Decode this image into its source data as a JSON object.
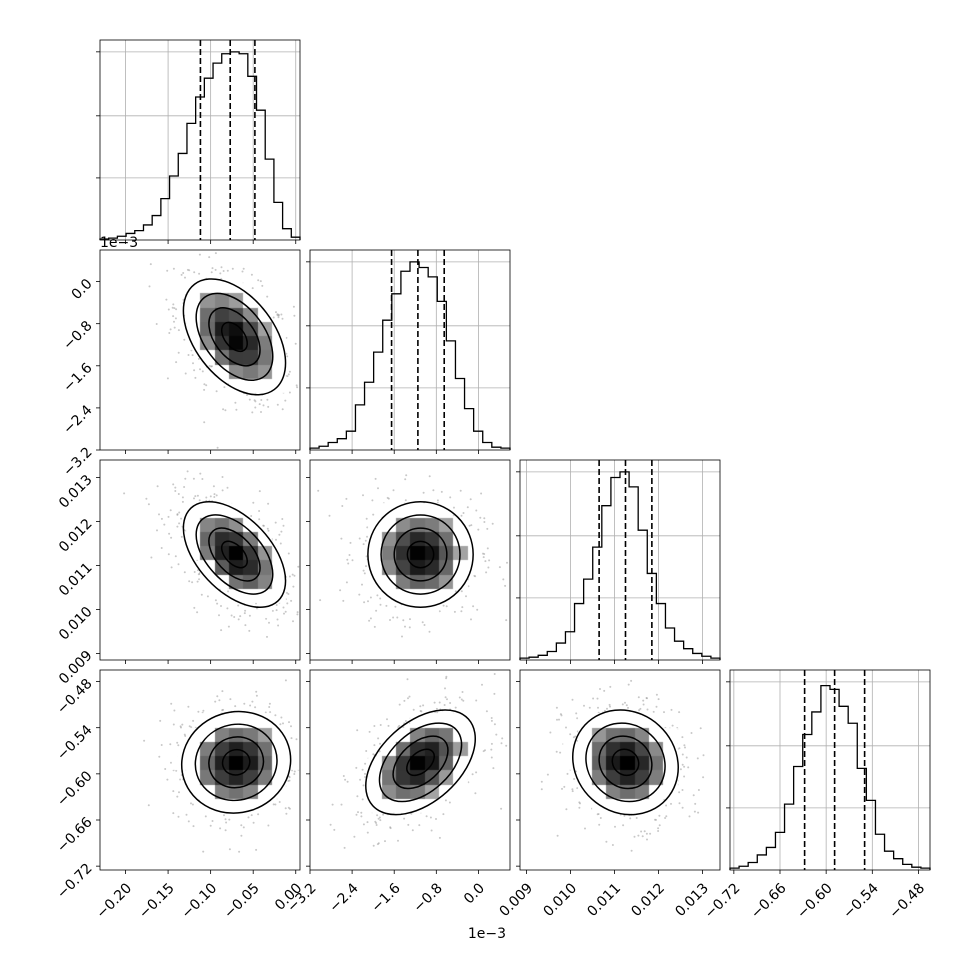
{
  "chart_data": {
    "type": "corner",
    "parameters": [
      {
        "range": [
          -0.23,
          0.005
        ],
        "ticks": [
          -0.2,
          -0.15,
          -0.1,
          -0.05,
          0.0
        ],
        "tick_labels": [
          "−0.20",
          "−0.15",
          "−0.10",
          "−0.05",
          "0.00"
        ],
        "quantiles": [
          -0.112,
          -0.077,
          -0.048
        ],
        "hist": [
          0.005,
          0.01,
          0.02,
          0.035,
          0.05,
          0.08,
          0.13,
          0.22,
          0.34,
          0.46,
          0.62,
          0.76,
          0.86,
          0.94,
          0.99,
          1.0,
          0.99,
          0.87,
          0.69,
          0.43,
          0.2,
          0.06,
          0.015
        ]
      },
      {
        "range": [
          -3.2,
          0.6
        ],
        "ticks": [
          -3.2,
          -2.4,
          -1.6,
          -0.8,
          0.0
        ],
        "tick_labels": [
          "−3.2",
          "−2.4",
          "−1.6",
          "−0.8",
          "0.0"
        ],
        "offset_label": "1e−3",
        "quantiles": [
          -1.65,
          -1.15,
          -0.65
        ],
        "hist": [
          0.01,
          0.02,
          0.04,
          0.06,
          0.1,
          0.24,
          0.36,
          0.52,
          0.69,
          0.83,
          0.95,
          1.0,
          0.97,
          0.92,
          0.79,
          0.58,
          0.38,
          0.22,
          0.1,
          0.04,
          0.015,
          0.01
        ]
      },
      {
        "range": [
          0.00885,
          0.0134
        ],
        "ticks": [
          0.009,
          0.01,
          0.011,
          0.012,
          0.013
        ],
        "tick_labels": [
          "0.009",
          "0.010",
          "0.011",
          "0.012",
          "0.013"
        ],
        "quantiles": [
          0.01065,
          0.01125,
          0.01185
        ],
        "hist": [
          0.01,
          0.015,
          0.025,
          0.045,
          0.09,
          0.15,
          0.3,
          0.43,
          0.6,
          0.82,
          0.97,
          1.0,
          0.92,
          0.69,
          0.46,
          0.3,
          0.17,
          0.1,
          0.06,
          0.035,
          0.02,
          0.01
        ]
      },
      {
        "range": [
          -0.725,
          -0.465
        ],
        "ticks": [
          -0.72,
          -0.66,
          -0.6,
          -0.54,
          -0.48
        ],
        "tick_labels": [
          "−0.72",
          "−0.66",
          "−0.60",
          "−0.54",
          "−0.48"
        ],
        "quantiles": [
          -0.628,
          -0.589,
          -0.55
        ],
        "hist": [
          0.01,
          0.02,
          0.04,
          0.08,
          0.12,
          0.2,
          0.35,
          0.55,
          0.72,
          0.84,
          0.98,
          0.96,
          0.87,
          0.78,
          0.54,
          0.37,
          0.19,
          0.1,
          0.06,
          0.03,
          0.015,
          0.01
        ]
      }
    ],
    "pairs": [
      {
        "xi": 0,
        "yi": 1,
        "center": [
          -0.072,
          -1.05
        ],
        "sigma": [
          0.03,
          0.55
        ],
        "rho": -0.45
      },
      {
        "xi": 0,
        "yi": 2,
        "center": [
          -0.072,
          0.01125
        ],
        "sigma": [
          0.03,
          0.0006
        ],
        "rho": -0.5
      },
      {
        "xi": 1,
        "yi": 2,
        "center": [
          -1.1,
          0.01125
        ],
        "sigma": [
          0.5,
          0.0006
        ],
        "rho": 0.0
      },
      {
        "xi": 0,
        "yi": 3,
        "center": [
          -0.07,
          -0.585
        ],
        "sigma": [
          0.032,
          0.033
        ],
        "rho": 0.05
      },
      {
        "xi": 1,
        "yi": 3,
        "center": [
          -1.1,
          -0.585
        ],
        "sigma": [
          0.52,
          0.034
        ],
        "rho": 0.45
      },
      {
        "xi": 2,
        "yi": 3,
        "center": [
          0.01125,
          -0.585
        ],
        "sigma": [
          0.0006,
          0.034
        ],
        "rho": -0.1
      }
    ]
  }
}
